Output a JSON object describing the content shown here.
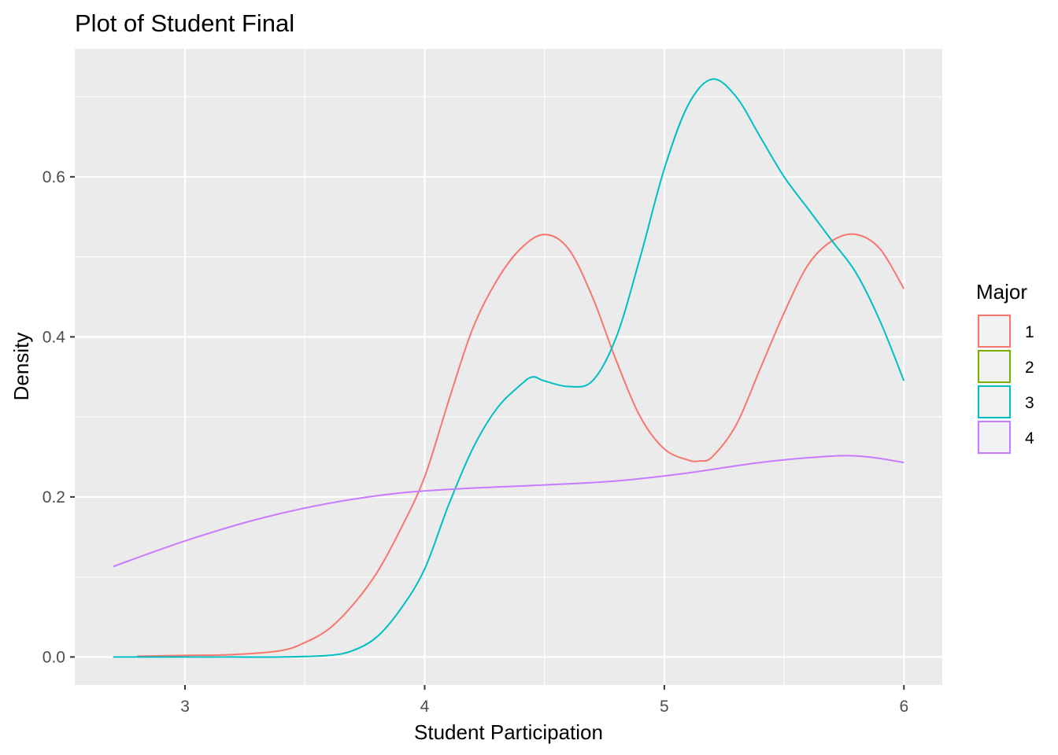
{
  "chart_data": {
    "type": "line",
    "title": "Plot of Student Final",
    "xlabel": "Student Participation",
    "ylabel": "Density",
    "xlim": [
      2.54,
      6.16
    ],
    "ylim": [
      -0.035,
      0.76
    ],
    "x_ticks": [
      "3",
      "4",
      "5",
      "6"
    ],
    "y_ticks": [
      "0.0",
      "0.2",
      "0.4",
      "0.6"
    ],
    "x_tick_values": [
      3,
      4,
      5,
      6
    ],
    "y_tick_values": [
      0.0,
      0.2,
      0.4,
      0.6
    ],
    "grid": true,
    "legend": {
      "title": "Major",
      "position": "right"
    },
    "series": [
      {
        "name": "1",
        "color": "#F8766D",
        "x": [
          2.8,
          3.0,
          3.2,
          3.4,
          3.5,
          3.6,
          3.7,
          3.8,
          3.9,
          4.0,
          4.1,
          4.2,
          4.3,
          4.4,
          4.5,
          4.6,
          4.7,
          4.8,
          4.9,
          5.0,
          5.1,
          5.15,
          5.2,
          5.3,
          5.4,
          5.5,
          5.6,
          5.7,
          5.8,
          5.9,
          6.0
        ],
        "y": [
          0.001,
          0.002,
          0.003,
          0.008,
          0.018,
          0.035,
          0.065,
          0.105,
          0.16,
          0.225,
          0.32,
          0.41,
          0.47,
          0.51,
          0.528,
          0.51,
          0.45,
          0.37,
          0.3,
          0.26,
          0.246,
          0.245,
          0.25,
          0.29,
          0.36,
          0.43,
          0.49,
          0.52,
          0.528,
          0.51,
          0.46
        ]
      },
      {
        "name": "2",
        "color": "#7CAE00",
        "x": [],
        "y": []
      },
      {
        "name": "3",
        "color": "#00BFC4",
        "x": [
          2.7,
          3.0,
          3.2,
          3.4,
          3.6,
          3.7,
          3.8,
          3.9,
          4.0,
          4.1,
          4.2,
          4.3,
          4.4,
          4.45,
          4.5,
          4.6,
          4.7,
          4.8,
          4.9,
          5.0,
          5.1,
          5.2,
          5.3,
          5.4,
          5.5,
          5.6,
          5.7,
          5.8,
          5.9,
          6.0
        ],
        "y": [
          0.0,
          0.0,
          0.0,
          0.0,
          0.002,
          0.008,
          0.025,
          0.06,
          0.11,
          0.19,
          0.26,
          0.31,
          0.34,
          0.35,
          0.345,
          0.338,
          0.345,
          0.4,
          0.5,
          0.61,
          0.69,
          0.722,
          0.7,
          0.65,
          0.6,
          0.56,
          0.52,
          0.48,
          0.42,
          0.345
        ]
      },
      {
        "name": "4",
        "color": "#C77CFF",
        "x": [
          2.7,
          3.0,
          3.3,
          3.6,
          3.9,
          4.2,
          4.5,
          4.8,
          5.1,
          5.4,
          5.7,
          5.85,
          6.0
        ],
        "y": [
          0.113,
          0.145,
          0.172,
          0.192,
          0.205,
          0.211,
          0.215,
          0.22,
          0.23,
          0.243,
          0.251,
          0.25,
          0.243
        ]
      }
    ]
  }
}
